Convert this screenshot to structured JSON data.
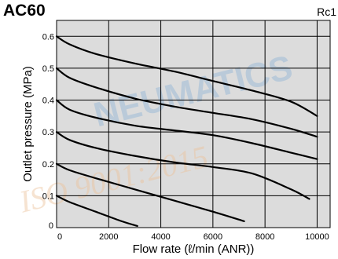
{
  "title": "AC60",
  "port_label": "Rc1",
  "watermark": {
    "main": "NEUMATICS",
    "iso": "ISO 9001:2015",
    "color_main": "#9fbcd7",
    "color_accent": "#ecc29a"
  },
  "chart_data": {
    "type": "line",
    "xlabel": "Flow rate (ℓ/min (ANR))",
    "ylabel": "Outlet pressure (MPa)",
    "xlim": [
      0,
      10500
    ],
    "ylim": [
      0,
      0.65
    ],
    "x_ticks": [
      0,
      2000,
      4000,
      6000,
      8000,
      10000
    ],
    "x_tick_labels": [
      "0",
      "2000",
      "4000",
      "6000",
      "8000",
      "10000"
    ],
    "y_ticks": [
      0,
      0.1,
      0.2,
      0.3,
      0.4,
      0.5,
      0.6
    ],
    "y_tick_labels": [
      "0",
      "0.1",
      "0.2",
      "0.3",
      "0.4",
      "0.5",
      "0.6"
    ],
    "grid": true,
    "background_color": "#dcdcdc",
    "line_color": "#000000",
    "series": [
      {
        "x": [
          0,
          500,
          1500,
          2500,
          3100
        ],
        "y": [
          0.1,
          0.08,
          0.05,
          0.02,
          0.005
        ]
      },
      {
        "x": [
          0,
          500,
          1500,
          3000,
          4500,
          6000,
          7200
        ],
        "y": [
          0.2,
          0.18,
          0.155,
          0.12,
          0.085,
          0.05,
          0.02
        ]
      },
      {
        "x": [
          0,
          500,
          1500,
          3000,
          4500,
          6000,
          7500,
          9000,
          9700
        ],
        "y": [
          0.3,
          0.275,
          0.25,
          0.225,
          0.205,
          0.19,
          0.17,
          0.12,
          0.09
        ]
      },
      {
        "x": [
          0,
          500,
          1500,
          3000,
          4500,
          6000,
          7500,
          9000,
          10000
        ],
        "y": [
          0.4,
          0.37,
          0.345,
          0.32,
          0.305,
          0.29,
          0.265,
          0.235,
          0.215
        ]
      },
      {
        "x": [
          0,
          500,
          1500,
          3000,
          4500,
          6000,
          7500,
          9000,
          10000
        ],
        "y": [
          0.5,
          0.47,
          0.44,
          0.405,
          0.38,
          0.36,
          0.34,
          0.31,
          0.285
        ]
      },
      {
        "x": [
          0,
          500,
          1500,
          3000,
          4500,
          6000,
          7500,
          9000,
          10000
        ],
        "y": [
          0.6,
          0.575,
          0.545,
          0.515,
          0.49,
          0.46,
          0.43,
          0.395,
          0.35
        ]
      }
    ]
  }
}
